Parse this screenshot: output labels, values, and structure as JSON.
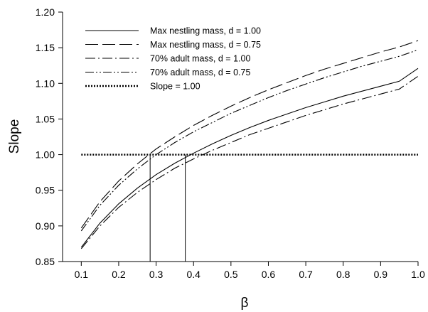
{
  "chart_data": {
    "type": "line",
    "title": "",
    "xlabel": "β",
    "ylabel": "Slope",
    "xlim": [
      0.05,
      1.0
    ],
    "ylim": [
      0.85,
      1.2
    ],
    "xticks": [
      0.1,
      0.2,
      0.3,
      0.4,
      0.5,
      0.6,
      0.7,
      0.8,
      0.9,
      1.0
    ],
    "xtick_labels": [
      "0.1",
      "0.2",
      "0.3",
      "0.4",
      "0.5",
      "0.6",
      "0.7",
      "0.8",
      "0.9",
      "1.0"
    ],
    "yticks": [
      0.85,
      0.9,
      0.95,
      1.0,
      1.05,
      1.1,
      1.15,
      1.2
    ],
    "ytick_labels": [
      "0.85",
      "0.90",
      "0.95",
      "1.00",
      "1.05",
      "1.10",
      "1.15",
      "1.20"
    ],
    "grid": false,
    "legend_position": "top-left",
    "x": [
      0.1,
      0.15,
      0.2,
      0.25,
      0.3,
      0.35,
      0.4,
      0.45,
      0.5,
      0.55,
      0.6,
      0.65,
      0.7,
      0.75,
      0.8,
      0.85,
      0.9,
      0.95,
      1.0
    ],
    "series": [
      {
        "name": "Max nestling mass, d = 1.00",
        "dash": "solid",
        "values": [
          0.87,
          0.904,
          0.931,
          0.953,
          0.972,
          0.988,
          1.002,
          1.015,
          1.027,
          1.038,
          1.048,
          1.057,
          1.066,
          1.074,
          1.082,
          1.089,
          1.096,
          1.103,
          1.121
        ]
      },
      {
        "name": "Max nestling mass, d = 0.75",
        "dash": "long-dash",
        "values": [
          0.897,
          0.934,
          0.963,
          0.987,
          1.008,
          1.025,
          1.041,
          1.055,
          1.068,
          1.08,
          1.091,
          1.101,
          1.111,
          1.12,
          1.128,
          1.136,
          1.144,
          1.151,
          1.16
        ]
      },
      {
        "name": "70% adult mass, d = 1.00",
        "dash": "dash-dot",
        "values": [
          0.868,
          0.9,
          0.926,
          0.947,
          0.965,
          0.981,
          0.994,
          1.006,
          1.017,
          1.028,
          1.037,
          1.046,
          1.055,
          1.063,
          1.071,
          1.078,
          1.085,
          1.092,
          1.11
        ]
      },
      {
        "name": "70% adult mass, d = 0.75",
        "dash": "dash-dot-dot",
        "values": [
          0.893,
          0.929,
          0.957,
          0.98,
          1.0,
          1.017,
          1.032,
          1.045,
          1.058,
          1.069,
          1.08,
          1.09,
          1.099,
          1.108,
          1.116,
          1.124,
          1.131,
          1.138,
          1.147
        ]
      },
      {
        "name": "Slope = 1.00",
        "dash": "dotted",
        "values": [
          1.0,
          1.0,
          1.0,
          1.0,
          1.0,
          1.0,
          1.0,
          1.0,
          1.0,
          1.0,
          1.0,
          1.0,
          1.0,
          1.0,
          1.0,
          1.0,
          1.0,
          1.0,
          1.0
        ]
      }
    ],
    "vertical_lines": [
      {
        "x": 0.284,
        "y_from": 0.85,
        "y_to": 1.0
      },
      {
        "x": 0.378,
        "y_from": 0.85,
        "y_to": 1.0
      }
    ]
  }
}
